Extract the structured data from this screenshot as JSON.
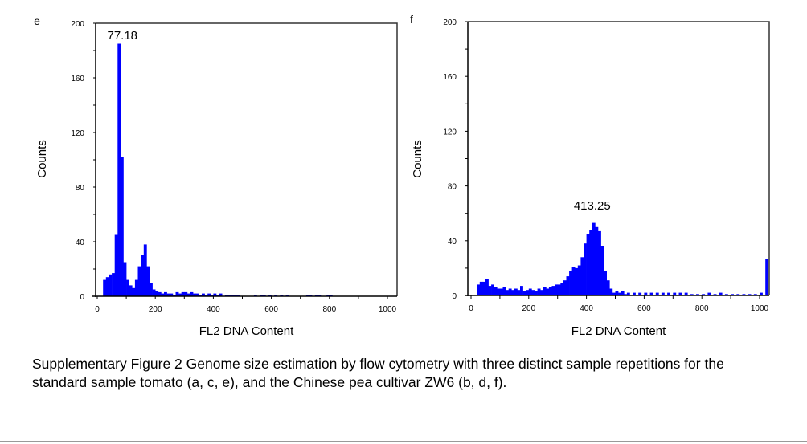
{
  "caption": "Supplementary Figure 2 Genome size estimation by  flow cytometry  with three distinct sample repetitions for the standard sample tomato (a, c, e), and the Chinese pea cultivar ZW6 (b, d, f).",
  "chart_data": [
    {
      "type": "bar",
      "panel_label": "e",
      "peak_label": "77.18",
      "xlabel": "FL2 DNA Content",
      "ylabel": "Counts",
      "xlim": [
        0,
        1030
      ],
      "ylim": [
        0,
        200
      ],
      "xticks": [
        "0",
        "200",
        "400",
        "600",
        "800",
        "1000"
      ],
      "yticks": [
        "0",
        "40",
        "80",
        "120",
        "160",
        "200"
      ],
      "bin_width": 10,
      "color": "#0000ff",
      "x": [
        20,
        30,
        40,
        50,
        60,
        70,
        80,
        90,
        100,
        110,
        120,
        130,
        140,
        150,
        160,
        170,
        180,
        190,
        200,
        210,
        220,
        230,
        240,
        250,
        260,
        270,
        280,
        290,
        300,
        310,
        320,
        330,
        340,
        350,
        360,
        370,
        380,
        390,
        400,
        410,
        420,
        440,
        450,
        460,
        470,
        480,
        540,
        560,
        570,
        590,
        610,
        630,
        650,
        720,
        730,
        750,
        760,
        790,
        800
      ],
      "y": [
        12,
        14,
        16,
        17,
        45,
        185,
        102,
        25,
        12,
        8,
        6,
        12,
        22,
        30,
        38,
        22,
        10,
        5,
        4,
        3,
        2,
        3,
        2,
        2,
        1,
        3,
        2,
        3,
        3,
        2,
        3,
        2,
        2,
        1,
        2,
        1,
        2,
        1,
        2,
        1,
        2,
        1,
        1,
        1,
        1,
        1,
        1,
        1,
        1,
        1,
        1,
        1,
        1,
        1,
        1,
        1,
        1,
        1,
        1
      ]
    },
    {
      "type": "bar",
      "panel_label": "f",
      "peak_label": "413.25",
      "xlabel": "FL2 DNA Content",
      "ylabel": "Counts",
      "xlim": [
        0,
        1030
      ],
      "ylim": [
        0,
        200
      ],
      "xticks": [
        "0",
        "200",
        "400",
        "600",
        "800",
        "1000"
      ],
      "yticks": [
        "0",
        "40",
        "80",
        "120",
        "160",
        "200"
      ],
      "bin_width": 10,
      "color": "#0000ff",
      "x": [
        20,
        30,
        40,
        50,
        60,
        70,
        80,
        90,
        100,
        110,
        120,
        130,
        140,
        150,
        160,
        170,
        180,
        190,
        200,
        210,
        220,
        230,
        240,
        250,
        260,
        270,
        280,
        290,
        300,
        310,
        320,
        330,
        340,
        350,
        360,
        370,
        380,
        390,
        400,
        410,
        420,
        430,
        440,
        450,
        460,
        470,
        480,
        490,
        500,
        510,
        520,
        530,
        540,
        560,
        580,
        600,
        620,
        640,
        660,
        680,
        700,
        720,
        740,
        760,
        780,
        800,
        820,
        840,
        860,
        880,
        900,
        920,
        940,
        960,
        980,
        1000,
        1020
      ],
      "y": [
        8,
        10,
        10,
        12,
        7,
        8,
        6,
        5,
        5,
        6,
        4,
        5,
        4,
        5,
        4,
        7,
        3,
        4,
        5,
        4,
        3,
        5,
        4,
        6,
        5,
        6,
        7,
        8,
        8,
        9,
        11,
        14,
        18,
        21,
        20,
        22,
        28,
        38,
        45,
        48,
        53,
        50,
        47,
        36,
        18,
        11,
        5,
        2,
        3,
        2,
        3,
        1,
        2,
        2,
        2,
        2,
        2,
        2,
        2,
        2,
        2,
        2,
        2,
        1,
        1,
        1,
        2,
        1,
        2,
        1,
        1,
        1,
        1,
        1,
        1,
        2,
        27
      ]
    }
  ]
}
